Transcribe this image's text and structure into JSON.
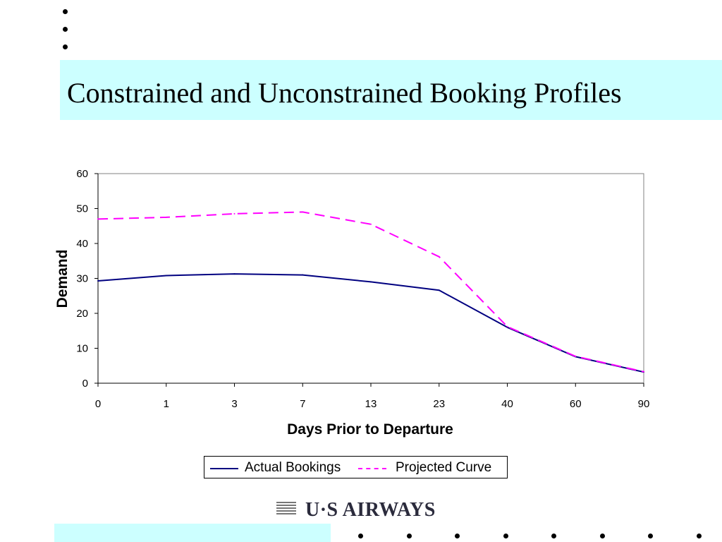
{
  "slide": {
    "title": "Constrained and Unconstrained Booking Profiles",
    "logo_text": "U·S AIRWAYS",
    "colors": {
      "band": "#ccffff",
      "actual": "#000080",
      "projected": "#ff00ff"
    }
  },
  "chart_data": {
    "type": "line",
    "title": "",
    "xlabel": "Days Prior to Departure",
    "ylabel": "Demand",
    "categories": [
      "0",
      "1",
      "3",
      "7",
      "13",
      "23",
      "40",
      "60",
      "90"
    ],
    "ylim": [
      0,
      60
    ],
    "yticks": [
      0,
      10,
      20,
      30,
      40,
      50,
      60
    ],
    "grid": false,
    "legend": "bottom",
    "series": [
      {
        "name": "Actual Bookings",
        "color": "#000080",
        "style": "solid",
        "values": [
          29.3,
          30.8,
          31.3,
          31.0,
          29.0,
          26.6,
          16.0,
          7.6,
          3.2
        ]
      },
      {
        "name": "Projected Curve",
        "color": "#ff00ff",
        "style": "dashed",
        "values": [
          47.0,
          47.5,
          48.5,
          49.0,
          45.5,
          36.2,
          16.2,
          7.7,
          3.3
        ]
      }
    ]
  }
}
